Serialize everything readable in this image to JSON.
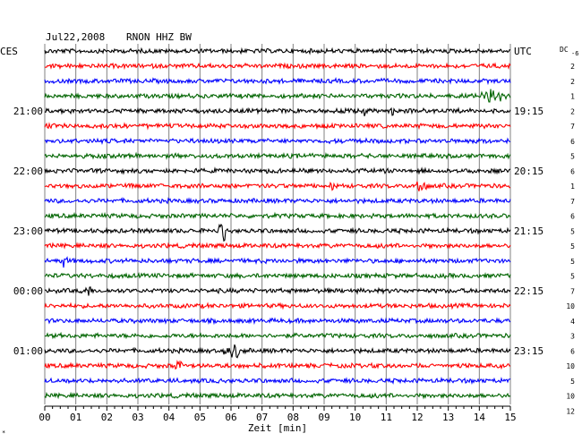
{
  "header": {
    "date": "Jul22,2008",
    "station": "RNON HHZ BW",
    "left_zone": "CES",
    "right_zone": "UTC",
    "dc_label": "DC",
    "dc_offset": "-6"
  },
  "chart_data": {
    "type": "line",
    "description_kind": "helicorder",
    "xlabel": "Zeit [min]",
    "x_ticks": [
      "00",
      "01",
      "02",
      "03",
      "04",
      "05",
      "06",
      "07",
      "08",
      "09",
      "10",
      "11",
      "12",
      "13",
      "14",
      "15"
    ],
    "xlim": [
      0,
      15
    ],
    "trace_colors": [
      "#000000",
      "#ff0000",
      "#0000ff",
      "#006400"
    ],
    "left_time_labels": [
      {
        "row": 4,
        "text": "21:00"
      },
      {
        "row": 8,
        "text": "22:00"
      },
      {
        "row": 12,
        "text": "23:00"
      },
      {
        "row": 16,
        "text": "00:00"
      },
      {
        "row": 20,
        "text": "01:00"
      }
    ],
    "right_time_labels": [
      {
        "row": 0,
        "text": "UTC"
      },
      {
        "row": 4,
        "text": "19:15"
      },
      {
        "row": 8,
        "text": "20:15"
      },
      {
        "row": 12,
        "text": "21:15"
      },
      {
        "row": 16,
        "text": "22:15"
      },
      {
        "row": 20,
        "text": "23:15"
      }
    ],
    "dc_values": [
      "2",
      "2",
      "1",
      "2",
      "7",
      "6",
      "5",
      "6",
      "1",
      "7",
      "6",
      "5",
      "5",
      "5",
      "5",
      "7",
      "10",
      "4",
      "3",
      "6",
      "10",
      "5",
      "10",
      "12"
    ],
    "events": [
      {
        "row": 3,
        "minute": 14.4,
        "amplitude": 8,
        "duration": 0.6,
        "kind": "burst"
      },
      {
        "row": 4,
        "minute": 10.3,
        "amplitude": 6,
        "duration": 0.1,
        "kind": "spike"
      },
      {
        "row": 4,
        "minute": 11.2,
        "amplitude": 5,
        "duration": 0.1,
        "kind": "spike"
      },
      {
        "row": 9,
        "minute": 12.1,
        "amplitude": 6,
        "duration": 0.3,
        "kind": "burst"
      },
      {
        "row": 9,
        "minute": 9.3,
        "amplitude": 5,
        "duration": 0.1,
        "kind": "spike"
      },
      {
        "row": 12,
        "minute": 5.7,
        "amplitude": 9,
        "duration": 0.1,
        "kind": "spike"
      },
      {
        "row": 14,
        "minute": 0.7,
        "amplitude": 6,
        "duration": 0.1,
        "kind": "spike"
      },
      {
        "row": 16,
        "minute": 1.4,
        "amplitude": 5,
        "duration": 0.1,
        "kind": "spike"
      },
      {
        "row": 20,
        "minute": 6.1,
        "amplitude": 9,
        "duration": 0.5,
        "kind": "burst"
      },
      {
        "row": 21,
        "minute": 4.3,
        "amplitude": 8,
        "duration": 0.2,
        "kind": "burst"
      }
    ]
  }
}
